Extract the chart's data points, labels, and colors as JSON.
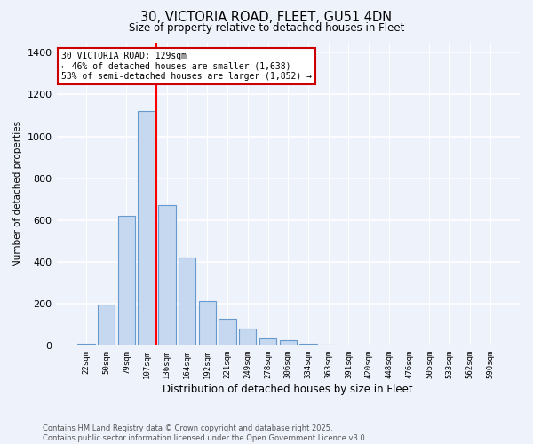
{
  "title_line1": "30, VICTORIA ROAD, FLEET, GU51 4DN",
  "title_line2": "Size of property relative to detached houses in Fleet",
  "xlabel": "Distribution of detached houses by size in Fleet",
  "ylabel": "Number of detached properties",
  "categories": [
    "22sqm",
    "50sqm",
    "79sqm",
    "107sqm",
    "136sqm",
    "164sqm",
    "192sqm",
    "221sqm",
    "249sqm",
    "278sqm",
    "306sqm",
    "334sqm",
    "363sqm",
    "391sqm",
    "420sqm",
    "448sqm",
    "476sqm",
    "505sqm",
    "533sqm",
    "562sqm",
    "590sqm"
  ],
  "values": [
    10,
    195,
    620,
    1120,
    670,
    420,
    215,
    130,
    80,
    35,
    25,
    10,
    5,
    2,
    1,
    0,
    0,
    0,
    0,
    0,
    0
  ],
  "bar_color": "#c5d8f0",
  "bar_edge_color": "#6699cc",
  "red_line_index": 4,
  "annotation_title": "30 VICTORIA ROAD: 129sqm",
  "annotation_line2": "← 46% of detached houses are smaller (1,638)",
  "annotation_line3": "53% of semi-detached houses are larger (1,852) →",
  "ylim": [
    0,
    1450
  ],
  "yticks": [
    0,
    200,
    400,
    600,
    800,
    1000,
    1200,
    1400
  ],
  "footer_line1": "Contains HM Land Registry data © Crown copyright and database right 2025.",
  "footer_line2": "Contains public sector information licensed under the Open Government Licence v3.0.",
  "bg_color": "#eef2fb",
  "grid_color": "#ffffff",
  "annotation_box_color": "#ffffff",
  "annotation_border_color": "#cc0000"
}
